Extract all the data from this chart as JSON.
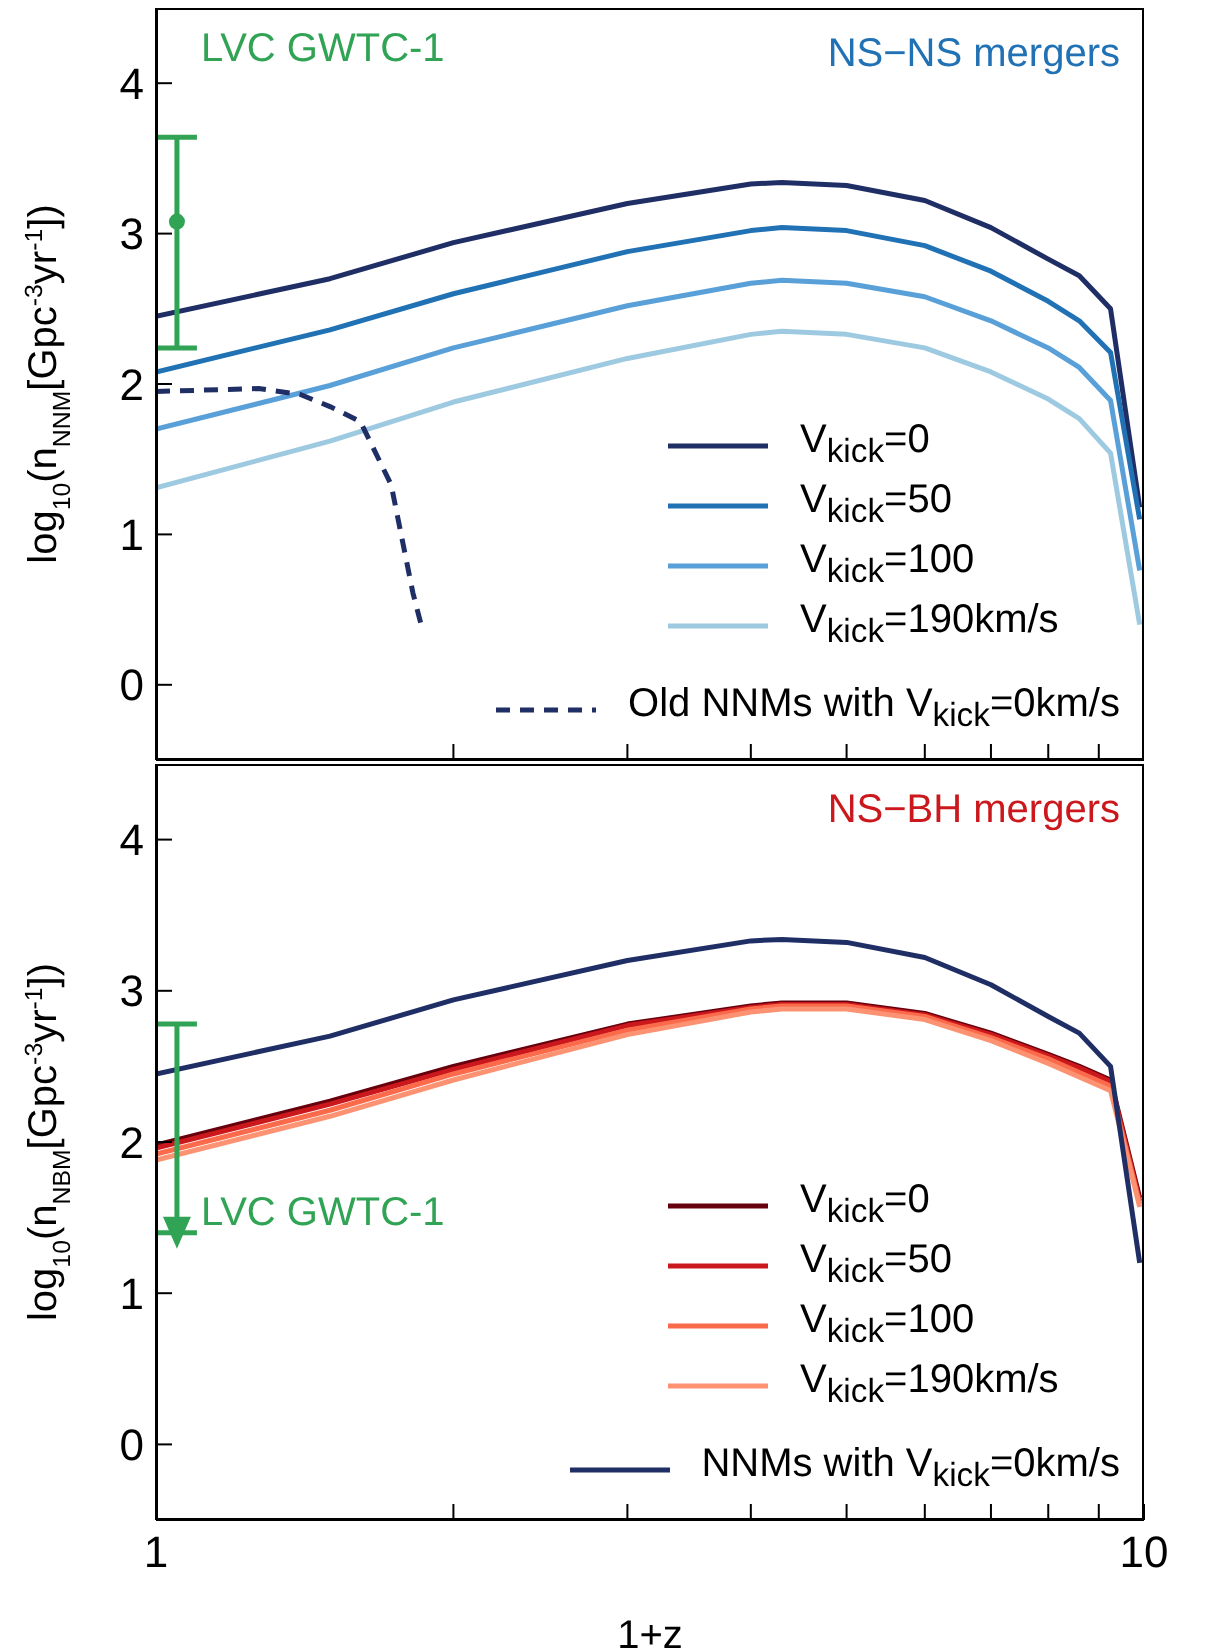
{
  "chart_data": [
    {
      "type": "line",
      "title": "NS−NS mergers",
      "ylabel": "log$_{10}$(n$_{NNM}$[Gpc$^{-3}$yr$^{-1}$])",
      "xlim": [
        1,
        10
      ],
      "xticks": [
        {
          "value": 2,
          "label": null
        },
        {
          "value": 3,
          "label": null
        },
        {
          "value": 4,
          "label": null
        },
        {
          "value": 5,
          "label": null
        },
        {
          "value": 6,
          "label": null
        },
        {
          "value": 7,
          "label": null
        },
        {
          "value": 8,
          "label": null
        },
        {
          "value": 9,
          "label": null
        }
      ],
      "log": "x",
      "ylim": [
        -0.5,
        4.5
      ],
      "yticks": [
        0,
        1,
        2,
        3,
        4
      ],
      "tick_labels": "y",
      "grid": false,
      "legend": "bottom right",
      "x": [
        1,
        1.5,
        2,
        3,
        4,
        4.3,
        5,
        6,
        7,
        8,
        8.6,
        9.25,
        9.9
      ],
      "series": [
        {
          "name": "V$_{kick}$=0",
          "color": "#1f2f66",
          "values": [
            2.45,
            2.7,
            2.94,
            3.2,
            3.33,
            3.34,
            3.32,
            3.22,
            3.04,
            2.83,
            2.72,
            2.5,
            1.18
          ]
        },
        {
          "name": "V$_{kick}$=50",
          "color": "#2171b5",
          "values": [
            2.08,
            2.36,
            2.6,
            2.88,
            3.02,
            3.04,
            3.02,
            2.92,
            2.75,
            2.55,
            2.42,
            2.21,
            1.1
          ]
        },
        {
          "name": "V$_{kick}$=100",
          "color": "#5aa0d8",
          "values": [
            1.7,
            1.99,
            2.24,
            2.52,
            2.67,
            2.69,
            2.67,
            2.58,
            2.42,
            2.24,
            2.11,
            1.89,
            0.76
          ]
        },
        {
          "name": "V$_{kick}$=190km/s",
          "color": "#9ecae1",
          "values": [
            1.31,
            1.62,
            1.88,
            2.17,
            2.33,
            2.35,
            2.33,
            2.24,
            2.08,
            1.9,
            1.77,
            1.54,
            0.4
          ]
        },
        {
          "name": "Old NNMs with V$_{kick}$=0km/s",
          "color": "#1f2f66",
          "line_style": "dashed",
          "x": [
            1,
            1.27,
            1.4,
            1.5,
            1.61,
            1.73,
            1.82,
            1.86
          ],
          "values": [
            1.95,
            1.97,
            1.93,
            1.85,
            1.75,
            1.33,
            0.61,
            0.37
          ]
        },
        {
          "type": "scatter",
          "name": "LVC GWTC-1",
          "color": "#31a354",
          "marker": "circle",
          "x": [
            1.05
          ],
          "values": [
            3.08
          ],
          "errors": [
            [
              2.24,
              3.64
            ]
          ]
        }
      ]
    },
    {
      "type": "line",
      "title": "NS−BH mergers",
      "xlabel": "1+z",
      "ylabel": "log$_{10}$(n$_{NBM}$[Gpc$^{-3}$yr$^{-1}$])",
      "xlim": [
        1,
        10
      ],
      "xticks": [
        1,
        {
          "value": 2,
          "label": null
        },
        {
          "value": 3,
          "label": null
        },
        {
          "value": 4,
          "label": null
        },
        {
          "value": 5,
          "label": null
        },
        {
          "value": 6,
          "label": null
        },
        {
          "value": 7,
          "label": null
        },
        {
          "value": 8,
          "label": null
        },
        {
          "value": 9,
          "label": null
        },
        10
      ],
      "log": "x",
      "ylim": [
        -0.5,
        4.5
      ],
      "yticks": [
        0,
        1,
        2,
        3,
        4
      ],
      "grid": false,
      "legend": "bottom right",
      "x": [
        1,
        1.5,
        2,
        3,
        4,
        4.3,
        5,
        6,
        7,
        8,
        8.6,
        9.25,
        9.9
      ],
      "series": [
        {
          "name": "V$_{kick}$=0",
          "color": "#67000d",
          "values": [
            1.98,
            2.27,
            2.5,
            2.78,
            2.9,
            2.92,
            2.92,
            2.85,
            2.72,
            2.58,
            2.5,
            2.41,
            1.63
          ]
        },
        {
          "name": "V$_{kick}$=50",
          "color": "#cb181d",
          "values": [
            1.96,
            2.25,
            2.48,
            2.77,
            2.89,
            2.91,
            2.91,
            2.84,
            2.71,
            2.57,
            2.49,
            2.4,
            1.61
          ]
        },
        {
          "name": "V$_{kick}$=100",
          "color": "#fb6a4a",
          "values": [
            1.92,
            2.21,
            2.45,
            2.74,
            2.88,
            2.9,
            2.9,
            2.83,
            2.69,
            2.55,
            2.46,
            2.37,
            1.59
          ]
        },
        {
          "name": "V$_{kick}$=190km/s",
          "color": "#fc9272",
          "values": [
            1.88,
            2.17,
            2.41,
            2.71,
            2.86,
            2.88,
            2.88,
            2.81,
            2.67,
            2.52,
            2.43,
            2.34,
            1.57
          ]
        },
        {
          "name": "NNMs with V$_{kick}$=0km/s",
          "color": "#1f2f66",
          "values": [
            2.45,
            2.7,
            2.94,
            3.2,
            3.33,
            3.34,
            3.32,
            3.22,
            3.04,
            2.83,
            2.72,
            2.5,
            1.2
          ]
        },
        {
          "type": "scatter",
          "name": "LVC GWTC-1",
          "color": "#31a354",
          "marker": "triangle",
          "x": [
            1.05
          ],
          "values": [
            1.4
          ],
          "errors": [
            [
              1.4,
              2.78
            ]
          ]
        }
      ]
    }
  ]
}
